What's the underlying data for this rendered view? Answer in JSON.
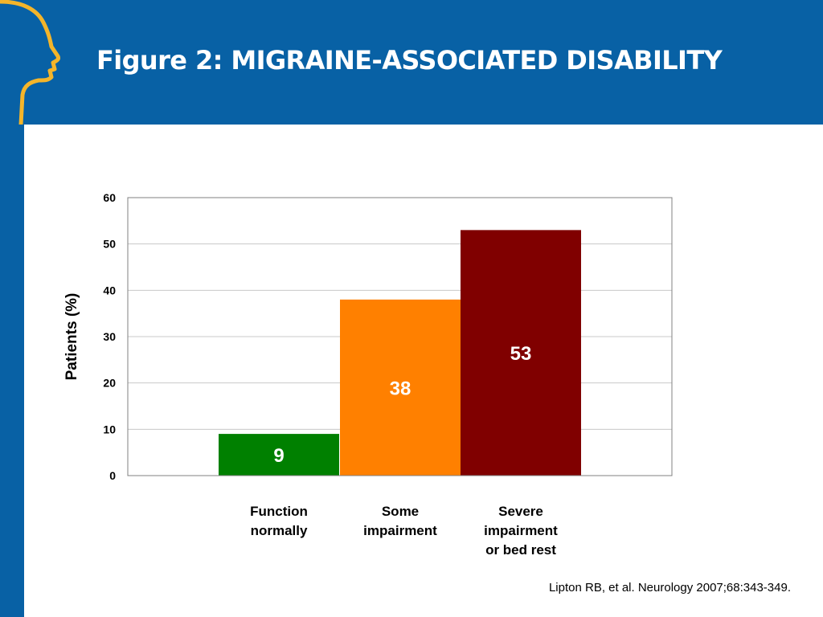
{
  "slide": {
    "title": "Figure 2: MIGRAINE-ASSOCIATED DISABILITY",
    "citation": "Lipton RB, et al. Neurology 2007;68:343-349.",
    "colors": {
      "header": "#0861a5",
      "logo_outline": "#f4b52a"
    },
    "logo_icon": "head-profile-icon"
  },
  "chart_data": {
    "type": "bar",
    "ylabel": "Patients (%)",
    "ylim": [
      0,
      60
    ],
    "yticks": [
      "0",
      "10",
      "20",
      "30",
      "40",
      "50",
      "60"
    ],
    "grid": true,
    "categories": [
      {
        "lines": [
          "Function",
          "normally"
        ]
      },
      {
        "lines": [
          "Some",
          "impairment"
        ]
      },
      {
        "lines": [
          "Severe",
          "impairment",
          "or bed rest"
        ]
      }
    ],
    "values": [
      9,
      38,
      53
    ],
    "value_labels": [
      "9",
      "38",
      "53"
    ],
    "colors": [
      "#008000",
      "#ff8000",
      "#800000"
    ]
  }
}
